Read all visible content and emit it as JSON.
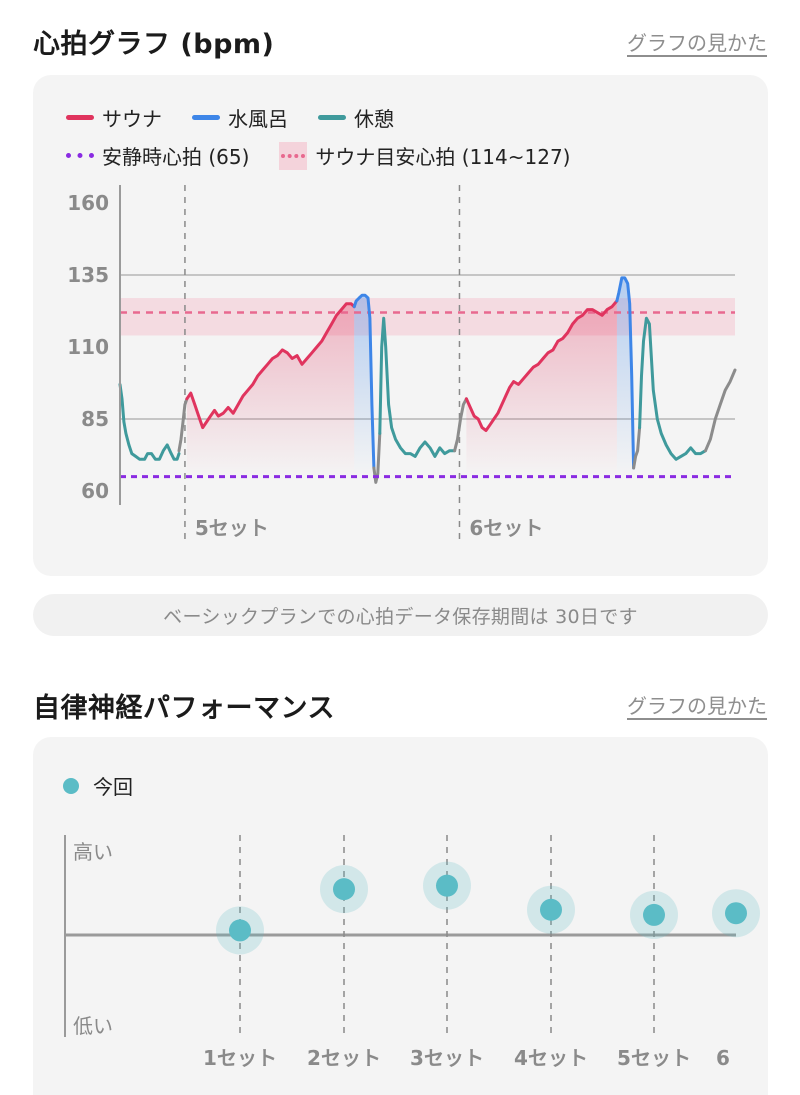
{
  "heart": {
    "title": "心拍グラフ (bpm)",
    "help_link": "グラフの見かた",
    "legend": {
      "sauna": "サウナ",
      "cold_bath": "水風呂",
      "rest": "休憩",
      "resting_hr": "安静時心拍 (65)",
      "sauna_target": "サウナ目安心拍 (114~127)"
    },
    "notice": "ベーシックプランでの心拍データ保存期間は 30日です"
  },
  "ans": {
    "title": "自律神経パフォーマンス",
    "help_link": "グラフの見かた",
    "legend_current": "今回",
    "high_label": "高い",
    "low_label": "低い"
  },
  "colors": {
    "sauna": "#e0345e",
    "cold_bath": "#3e86e8",
    "rest": "#3f9a9c",
    "transition": "#8c8c8c",
    "resting_hr": "#8a2be2",
    "target_band": "#f4d3db",
    "target_line": "#e8698f",
    "ans_dot": "#5bbcc6"
  },
  "chart_data": [
    {
      "type": "line",
      "title": "心拍グラフ (bpm)",
      "ylabel": "",
      "ylim": [
        60,
        160
      ],
      "yticks": [
        "160",
        "135",
        "110",
        "85",
        "60"
      ],
      "sets": [
        "5セット",
        "6セット"
      ],
      "resting_hr": 65,
      "sauna_target_range": [
        114,
        127
      ],
      "sauna_target_line": 122,
      "series": [
        {
          "name": "休憩",
          "kind": "rest",
          "x": [
            0,
            2,
            4,
            6,
            9,
            12,
            16,
            20,
            25,
            28,
            32,
            36,
            40,
            44,
            48,
            52,
            55,
            58,
            60
          ],
          "y": [
            97,
            92,
            84,
            80,
            76,
            73,
            72,
            71,
            71,
            73,
            73,
            71,
            71,
            74,
            76,
            73,
            71,
            71,
            73
          ]
        },
        {
          "name": "",
          "kind": "transition",
          "x": [
            60,
            62,
            64,
            66,
            68
          ],
          "y": [
            74,
            78,
            84,
            90,
            92
          ]
        },
        {
          "name": "サウナ",
          "kind": "sauna",
          "x": [
            68,
            72,
            76,
            80,
            84,
            88,
            92,
            96,
            100,
            105,
            110,
            115,
            120,
            125,
            130,
            135,
            140,
            145,
            150,
            155,
            160,
            165,
            170,
            175,
            180,
            185,
            190,
            195,
            200,
            205,
            210,
            215,
            220,
            225,
            230,
            235,
            238
          ],
          "y": [
            92,
            94,
            90,
            86,
            82,
            84,
            86,
            88,
            86,
            87,
            89,
            87,
            90,
            93,
            95,
            97,
            100,
            102,
            104,
            106,
            107,
            109,
            108,
            106,
            107,
            104,
            106,
            108,
            110,
            112,
            115,
            118,
            121,
            123,
            125,
            125,
            124
          ]
        },
        {
          "name": "水風呂",
          "kind": "cold_bath",
          "x": [
            238,
            240,
            243,
            246,
            249,
            252,
            254,
            256,
            258
          ],
          "y": [
            124,
            126,
            127,
            128,
            128,
            127,
            120,
            90,
            68
          ]
        },
        {
          "name": "",
          "kind": "transition",
          "x": [
            258,
            260,
            262,
            264
          ],
          "y": [
            68,
            63,
            66,
            80
          ]
        },
        {
          "name": "休憩",
          "kind": "rest",
          "x": [
            264,
            266,
            268,
            270,
            273,
            276,
            280,
            285,
            290,
            295,
            300,
            305,
            310,
            315,
            320,
            325,
            330,
            335,
            340
          ],
          "y": [
            80,
            110,
            120,
            110,
            90,
            82,
            78,
            75,
            73,
            73,
            72,
            75,
            77,
            75,
            72,
            75,
            73,
            74,
            74
          ]
        },
        {
          "name": "",
          "kind": "transition",
          "x": [
            340,
            343,
            346,
            349,
            352
          ],
          "y": [
            74,
            78,
            85,
            90,
            92
          ]
        },
        {
          "name": "サウナ",
          "kind": "sauna",
          "x": [
            352,
            356,
            360,
            364,
            368,
            372,
            376,
            380,
            384,
            388,
            392,
            396,
            400,
            405,
            410,
            415,
            420,
            425,
            430,
            435,
            440,
            445,
            450,
            455,
            460,
            465,
            470,
            475,
            480,
            485,
            490,
            495,
            500,
            505
          ],
          "y": [
            92,
            89,
            86,
            85,
            82,
            81,
            83,
            85,
            87,
            90,
            93,
            96,
            98,
            97,
            99,
            101,
            103,
            104,
            106,
            108,
            109,
            112,
            113,
            115,
            118,
            120,
            121,
            123,
            123,
            122,
            121,
            123,
            124,
            126
          ]
        },
        {
          "name": "水風呂",
          "kind": "cold_bath",
          "x": [
            505,
            507,
            510,
            513,
            516,
            518,
            520,
            522
          ],
          "y": [
            126,
            129,
            134,
            134,
            132,
            125,
            100,
            68
          ]
        },
        {
          "name": "",
          "kind": "transition",
          "x": [
            522,
            524,
            526,
            528
          ],
          "y": [
            68,
            72,
            74,
            82
          ]
        },
        {
          "name": "休憩",
          "kind": "rest",
          "x": [
            528,
            530,
            532,
            535,
            538,
            542,
            546,
            550,
            555,
            560,
            565,
            570,
            575,
            580,
            585,
            590,
            595
          ],
          "y": [
            82,
            100,
            112,
            120,
            118,
            95,
            85,
            80,
            76,
            73,
            71,
            72,
            73,
            75,
            73,
            73,
            74
          ]
        },
        {
          "name": "",
          "kind": "transition",
          "x": [
            595,
            600,
            605,
            610,
            615,
            620,
            625
          ],
          "y": [
            74,
            78,
            85,
            90,
            95,
            98,
            102
          ]
        }
      ]
    },
    {
      "type": "scatter",
      "title": "自律神経パフォーマンス",
      "series_name": "今回",
      "categories": [
        "1セット",
        "2セット",
        "3セット",
        "4セット",
        "5セット",
        "6"
      ],
      "ylabels": [
        "高い",
        "低い"
      ],
      "values": [
        0.55,
        0.79,
        0.81,
        0.67,
        0.64,
        0.65
      ]
    }
  ]
}
